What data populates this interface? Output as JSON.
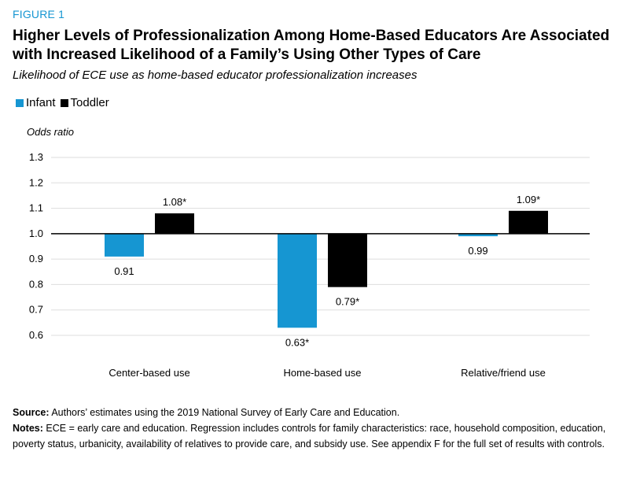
{
  "figure_label": "FIGURE 1",
  "title": "Higher Levels of Professionalization Among Home-Based Educators Are Associated with Increased Likelihood of a Family’s Using Other Types of Care",
  "subtitle": "Likelihood of ECE use as home-based educator professionalization increases",
  "source_label": "Source:",
  "source_text": "Authors’ estimates using the 2019 National Survey of Early Care and Education.",
  "notes_label": "Notes:",
  "notes_text": "ECE = early care and education. Regression includes controls for family characteristics: race, household composition, education, poverty status, urbanicity, availability of relatives to provide care, and subsidy use. See appendix F for the full set of results with controls.",
  "colors": {
    "infant": "#1696d2",
    "toddler": "#000000",
    "grid": "#dedede"
  },
  "chart_data": {
    "type": "bar",
    "ylabel": "Odds ratio",
    "ylim": [
      0.6,
      1.3
    ],
    "yticks": [
      "0.6",
      "0.7",
      "0.8",
      "0.9",
      "1.0",
      "1.1",
      "1.2",
      "1.3"
    ],
    "baseline": 1.0,
    "grid": true,
    "legend_position": "top-left",
    "categories": [
      "Center-based use",
      "Home-based use",
      "Relative/friend use"
    ],
    "series": [
      {
        "name": "Infant",
        "values": [
          0.91,
          0.63,
          0.99
        ],
        "labels": [
          "0.91",
          "0.63*",
          "0.99"
        ]
      },
      {
        "name": "Toddler",
        "values": [
          1.08,
          0.79,
          1.09
        ],
        "labels": [
          "1.08*",
          "0.79*",
          "1.09*"
        ]
      }
    ]
  }
}
